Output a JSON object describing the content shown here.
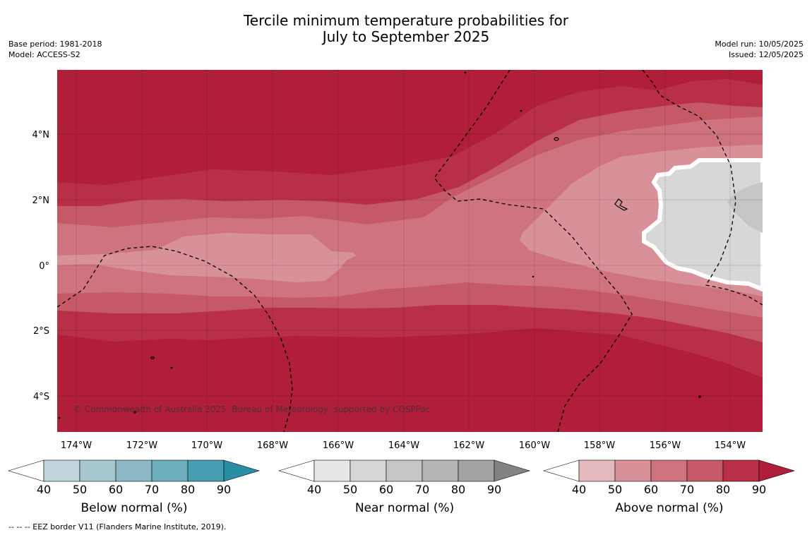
{
  "title_line1": "Tercile minimum temperature probabilities for",
  "title_line2": "July to September 2025",
  "meta_left": {
    "base_period": "Base period: 1981-2018",
    "model": "Model: ACCESS-S2"
  },
  "meta_right": {
    "model_run": "Model run: 10/05/2025",
    "issued": "Issued: 12/05/2025"
  },
  "map": {
    "lon_labels": [
      "174°W",
      "172°W",
      "170°W",
      "168°W",
      "166°W",
      "164°W",
      "162°W",
      "160°W",
      "158°W",
      "156°W",
      "154°W"
    ],
    "lat_labels": [
      "4°N",
      "2°N",
      "0°",
      "2°S",
      "4°S"
    ],
    "copyright": "© Commonwealth of Australia 2025, Bureau of Meteorology, supported by COSPPac"
  },
  "colorbars": [
    {
      "label": "Below normal (%)",
      "ticks": [
        "40",
        "50",
        "60",
        "70",
        "80",
        "90"
      ],
      "colors": [
        "#ffffff",
        "#bed5dc",
        "#a7c7ce",
        "#8bb8c4",
        "#6badbc",
        "#479eb0",
        "#2a8ea3"
      ]
    },
    {
      "label": "Near normal (%)",
      "ticks": [
        "40",
        "50",
        "60",
        "70",
        "80",
        "90"
      ],
      "colors": [
        "#ffffff",
        "#e7e7e7",
        "#d7d7d7",
        "#c6c6c6",
        "#b5b5b5",
        "#a3a3a3",
        "#838383"
      ]
    },
    {
      "label": "Above normal (%)",
      "ticks": [
        "40",
        "50",
        "60",
        "70",
        "80",
        "90"
      ],
      "colors": [
        "#ffffff",
        "#e3b9be",
        "#d99199",
        "#cf747e",
        "#c55a66",
        "#b92f45",
        "#b01e3a"
      ]
    }
  ],
  "footnote": "--  --  -- EEZ border V11 (Flanders Marine Institute, 2019)."
}
